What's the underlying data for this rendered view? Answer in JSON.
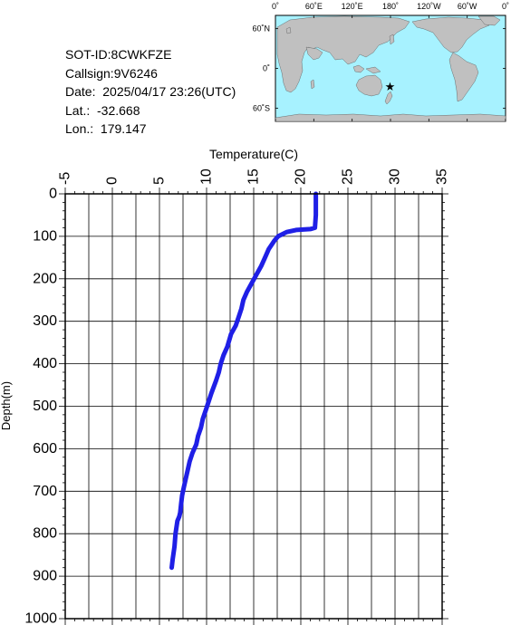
{
  "info": {
    "sot_id": "SOT-ID:8CWKFZE",
    "callsign": "Callsign:9V6246",
    "date": "Date:  2025/04/17 23:26(UTC)",
    "lat": "Lat.:  -32.668",
    "lon": "Lon.:  179.147"
  },
  "map": {
    "lon_labels": [
      "0˚",
      "60˚E",
      "120˚E",
      "180˚",
      "120˚W",
      "60˚W",
      "0˚"
    ],
    "lat_labels": [
      "60˚N",
      "0˚",
      "60˚S"
    ],
    "marker": {
      "lat": -32.668,
      "lon": 179.147,
      "symbol": "★"
    },
    "colors": {
      "ocean": "#a7f2ff",
      "land": "#c0c0c0",
      "marker": "#ff0000"
    }
  },
  "chart_data": {
    "type": "line",
    "xlabel": "Temperature(C)",
    "ylabel": "Depth(m)",
    "xlim": [
      -5,
      35
    ],
    "ylim": [
      0,
      1000
    ],
    "y_inverted": true,
    "x_axis_position": "top",
    "x_ticks": [
      "-5",
      "0",
      "5",
      "10",
      "15",
      "20",
      "25",
      "30",
      "35"
    ],
    "y_ticks": [
      "0",
      "100",
      "200",
      "300",
      "400",
      "500",
      "600",
      "700",
      "800",
      "900",
      "1000"
    ],
    "grid": true,
    "line_color": "#1f1fe6",
    "series": [
      {
        "x": [
          21.6,
          21.6,
          21.6,
          21.5,
          21.0,
          19.5,
          18.5,
          17.6,
          17.2,
          16.6,
          16.2,
          15.8,
          15.3,
          14.8,
          14.3,
          13.9,
          13.7,
          13.4,
          13.1,
          12.6,
          12.2,
          11.8,
          11.5,
          11.3,
          11.0,
          10.5,
          10.2,
          9.9,
          9.6,
          9.4,
          9.1,
          8.9,
          8.5,
          8.2,
          8.0,
          7.8,
          7.6,
          7.4,
          7.3,
          7.2,
          7.1,
          6.9,
          6.7,
          6.6,
          6.4,
          6.3
        ],
        "y": [
          0,
          20,
          50,
          80,
          83,
          85,
          90,
          100,
          110,
          130,
          150,
          170,
          190,
          210,
          230,
          250,
          270,
          290,
          310,
          330,
          360,
          380,
          400,
          420,
          440,
          470,
          490,
          510,
          530,
          550,
          570,
          590,
          610,
          630,
          650,
          670,
          690,
          710,
          730,
          750,
          760,
          770,
          800,
          830,
          860,
          880
        ]
      }
    ]
  }
}
